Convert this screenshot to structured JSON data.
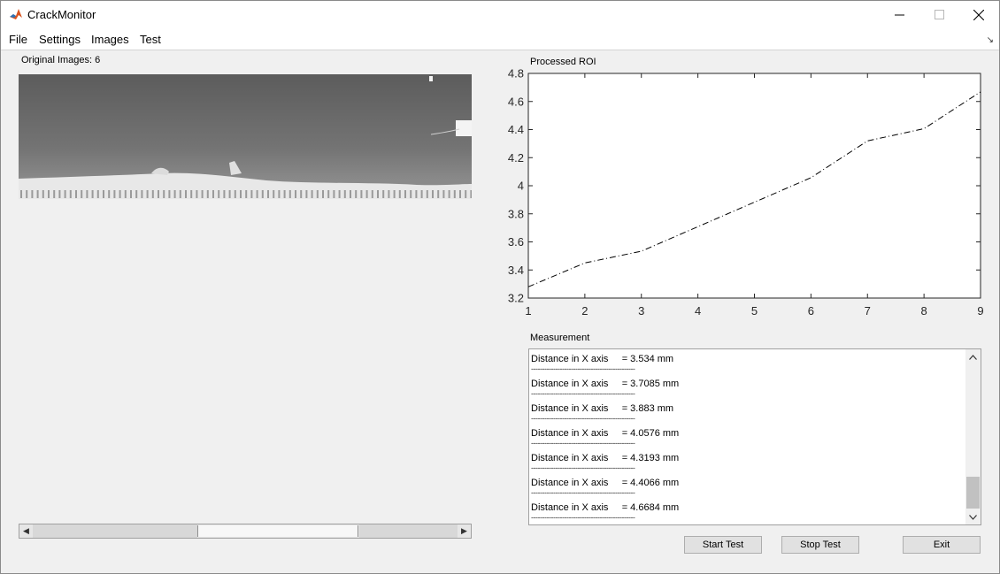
{
  "window": {
    "title": "CrackMonitor",
    "controls": [
      "minimize",
      "maximize",
      "close"
    ]
  },
  "menu": {
    "items": [
      "File",
      "Settings",
      "Images",
      "Test"
    ]
  },
  "left_panel": {
    "label": "Original Images: 6",
    "image_icon": "crack-specimen-image",
    "scrollbar": {
      "position": 0.4
    }
  },
  "plot": {
    "title": "Processed ROI"
  },
  "chart_data": {
    "type": "line",
    "title": "Processed ROI",
    "xlabel": "",
    "ylabel": "",
    "x": [
      1,
      2,
      3,
      4,
      5,
      6,
      7,
      8,
      9
    ],
    "series": [
      {
        "values": [
          3.28,
          3.45,
          3.534,
          3.7085,
          3.883,
          4.0576,
          4.3193,
          4.4066,
          4.6684
        ]
      }
    ],
    "xlim": [
      1,
      9
    ],
    "ylim": [
      3.2,
      4.8
    ],
    "xticks": [
      "1",
      "2",
      "3",
      "4",
      "5",
      "6",
      "7",
      "8",
      "9"
    ],
    "yticks": [
      "3.2",
      "3.4",
      "3.6",
      "3.8",
      "4",
      "4.2",
      "4.4",
      "4.6",
      "4.8"
    ],
    "line_style": "dash-dot",
    "line_color": "#000000",
    "grid": false
  },
  "measurement": {
    "label": "Measurement",
    "separator": "-----------------------------------------------",
    "rows": [
      {
        "text": "Distance in X axis     = 3.534 mm"
      },
      {
        "text": "Distance in X axis     = 3.7085 mm"
      },
      {
        "text": "Distance in X axis     = 3.883 mm"
      },
      {
        "text": "Distance in X axis     = 4.0576 mm"
      },
      {
        "text": "Distance in X axis     = 4.3193 mm"
      },
      {
        "text": "Distance in X axis     = 4.4066 mm"
      },
      {
        "text": "Distance in X axis     = 4.6684 mm"
      }
    ]
  },
  "buttons": {
    "start": "Start Test",
    "stop": "Stop Test",
    "exit": "Exit"
  },
  "colors": {
    "window_bg": "#f0f0f0",
    "titlebar_bg": "#ffffff",
    "button_bg": "#e1e1e1"
  }
}
